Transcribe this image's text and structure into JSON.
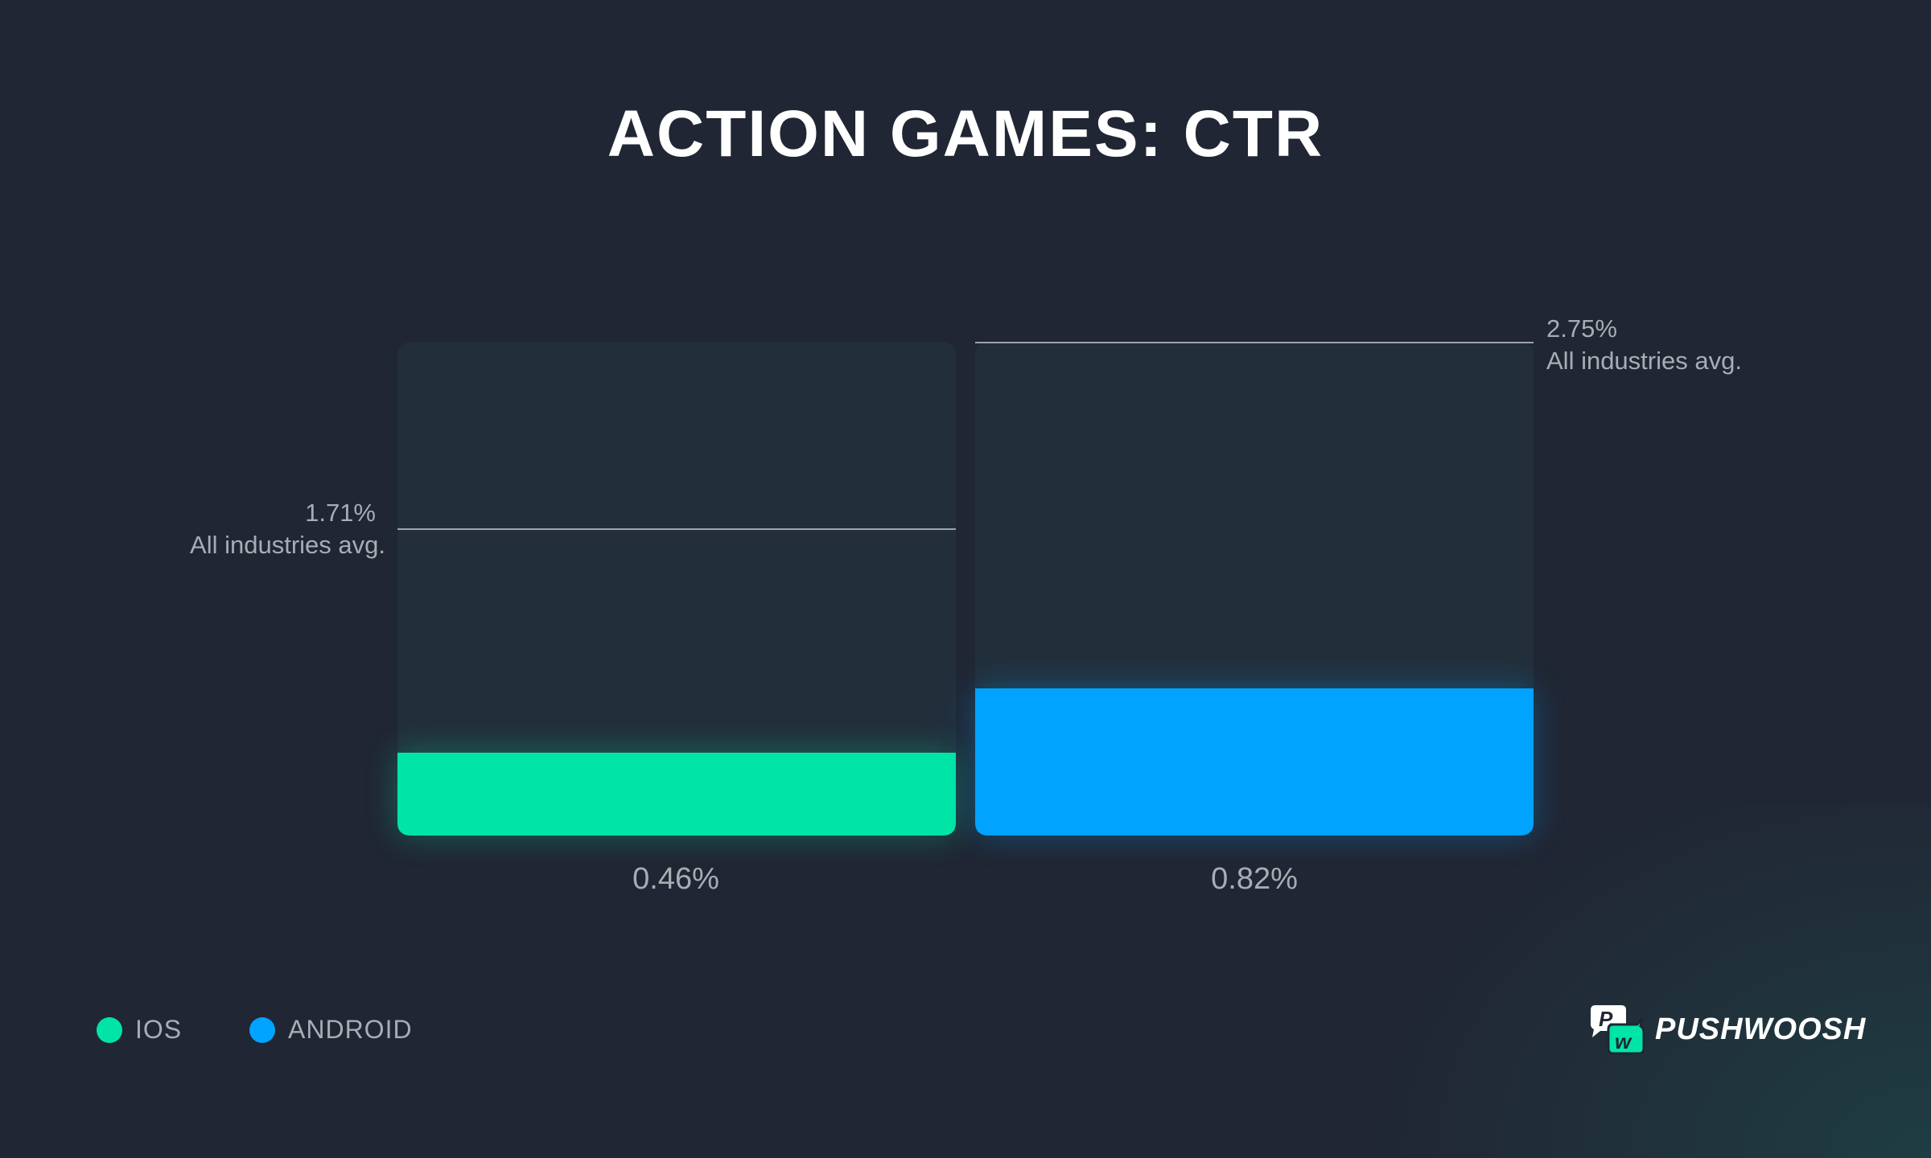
{
  "chart_data": {
    "type": "bar",
    "title": "ACTION GAMES: CTR",
    "categories": [
      "IOS",
      "ANDROID"
    ],
    "values": [
      0.46,
      0.82
    ],
    "value_labels": [
      "0.46%",
      "0.82%"
    ],
    "ylim": [
      0,
      2.75
    ],
    "unit": "%",
    "reference_lines": [
      {
        "category": "IOS",
        "value": 1.71,
        "label": "1.71%",
        "text": "All industries avg."
      },
      {
        "category": "ANDROID",
        "value": 2.75,
        "label": "2.75%",
        "text": "All industries avg."
      }
    ],
    "colors": {
      "IOS": "#00e5a6",
      "ANDROID": "#00a3ff"
    },
    "legend": {
      "placement": "bottom-left",
      "entries": [
        "IOS",
        "ANDROID"
      ]
    },
    "grid": false
  },
  "brand": {
    "name": "PUSHWOOSH",
    "accent": "#00e5a6"
  }
}
